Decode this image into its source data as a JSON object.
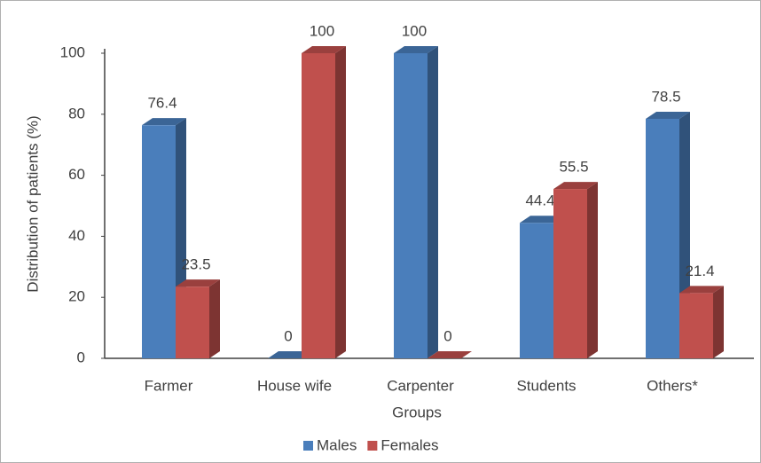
{
  "chart_data": {
    "type": "bar3d",
    "categories": [
      "Farmer",
      "House wife",
      "Carpenter",
      "Students",
      "Others*"
    ],
    "series": [
      {
        "name": "Males",
        "color": "#4a7ebb",
        "values": [
          76.4,
          0,
          100,
          44.4,
          78.5
        ]
      },
      {
        "name": "Females",
        "color": "#c0504d",
        "values": [
          23.5,
          100,
          0,
          55.5,
          21.4
        ]
      }
    ],
    "ylim": [
      0,
      100
    ],
    "yticks": [
      0,
      20,
      40,
      60,
      80,
      100
    ],
    "ylabel": "Distribution of patients (%)",
    "xlabel": "Groups",
    "legend": "bottom"
  }
}
